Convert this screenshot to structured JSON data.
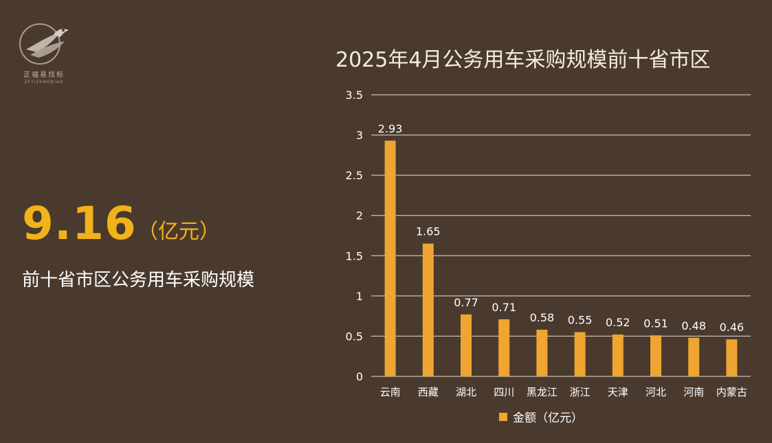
{
  "logo": {
    "name": "正福易找标",
    "sub": "ZFYIZHAOBIAO",
    "icon": "eagle-icon"
  },
  "summary": {
    "value": "9.16",
    "unit": "（亿元）",
    "caption": "前十省市区公务用车采购规模"
  },
  "colors": {
    "background": "#4a3a2e",
    "bar": "#eea531",
    "accent": "#f2b21c",
    "grid": "#e8e0d6"
  },
  "chart_data": {
    "type": "bar",
    "title": "2025年4月公务用车采购规模前十省市区",
    "xlabel": "",
    "ylabel": "",
    "ylim": [
      0,
      3.5
    ],
    "yticks": [
      "0",
      "0.5",
      "1",
      "1.5",
      "2",
      "2.5",
      "3",
      "3.5"
    ],
    "categories": [
      "云南",
      "西藏",
      "湖北",
      "四川",
      "黑龙江",
      "浙江",
      "天津",
      "河北",
      "河南",
      "内蒙古"
    ],
    "series": [
      {
        "name": "金额（亿元）",
        "values": [
          2.93,
          1.65,
          0.77,
          0.71,
          0.58,
          0.55,
          0.52,
          0.51,
          0.48,
          0.46
        ],
        "labels": [
          "2.93",
          "1.65",
          "0.77",
          "0.71",
          "0.58",
          "0.55",
          "0.52",
          "0.51",
          "0.48",
          "0.46"
        ]
      }
    ],
    "grid": true,
    "legend": "bottom"
  }
}
